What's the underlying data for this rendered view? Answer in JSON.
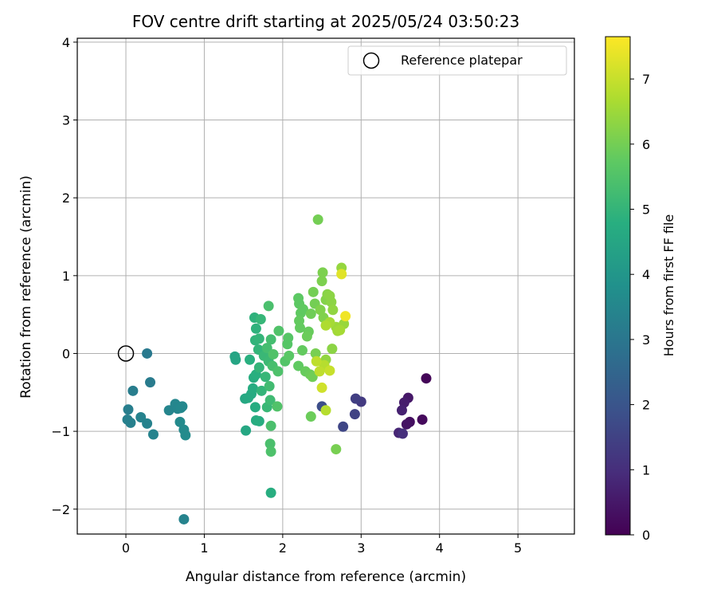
{
  "chart_data": {
    "type": "scatter",
    "title": "FOV centre drift starting at 2025/05/24 03:50:23",
    "xlabel": "Angular distance from reference (arcmin)",
    "ylabel": "Rotation from reference (arcmin)",
    "xlim": [
      -0.62,
      5.72
    ],
    "ylim": [
      -2.32,
      4.05
    ],
    "xticks": [
      0,
      1,
      2,
      3,
      4,
      5
    ],
    "yticks": [
      -2,
      -1,
      0,
      1,
      2,
      3,
      4
    ],
    "grid": true,
    "legend": {
      "position": "top-right",
      "entries": [
        "Reference platepar"
      ]
    },
    "reference_point": {
      "x": 0,
      "y": 0
    },
    "colorbar": {
      "label": "Hours from first FF file",
      "range": [
        0,
        7.65
      ],
      "ticks": [
        0,
        1,
        2,
        3,
        4,
        5,
        6,
        7
      ],
      "colormap": "viridis"
    },
    "points": [
      {
        "x": 3.83,
        "y": -0.32,
        "c": 0.1
      },
      {
        "x": 3.78,
        "y": -0.85,
        "c": 0.2
      },
      {
        "x": 3.62,
        "y": -0.88,
        "c": 0.3
      },
      {
        "x": 3.58,
        "y": -0.91,
        "c": 0.4
      },
      {
        "x": 3.6,
        "y": -0.57,
        "c": 0.5
      },
      {
        "x": 3.55,
        "y": -0.63,
        "c": 0.6
      },
      {
        "x": 3.52,
        "y": -0.73,
        "c": 0.7
      },
      {
        "x": 3.48,
        "y": -1.02,
        "c": 0.8
      },
      {
        "x": 3.53,
        "y": -1.03,
        "c": 1.0
      },
      {
        "x": 3.0,
        "y": -0.62,
        "c": 1.3
      },
      {
        "x": 2.93,
        "y": -0.58,
        "c": 1.4
      },
      {
        "x": 2.92,
        "y": -0.78,
        "c": 1.5
      },
      {
        "x": 2.77,
        "y": -0.94,
        "c": 1.6
      },
      {
        "x": 2.5,
        "y": -0.68,
        "c": 1.8
      },
      {
        "x": 0.27,
        "y": 0.0,
        "c": 3.1
      },
      {
        "x": 0.31,
        "y": -0.37,
        "c": 3.15
      },
      {
        "x": 0.09,
        "y": -0.48,
        "c": 3.2
      },
      {
        "x": 0.03,
        "y": -0.72,
        "c": 3.25
      },
      {
        "x": 0.02,
        "y": -0.85,
        "c": 3.3
      },
      {
        "x": 0.06,
        "y": -0.89,
        "c": 3.3
      },
      {
        "x": 0.19,
        "y": -0.82,
        "c": 3.35
      },
      {
        "x": 0.27,
        "y": -0.9,
        "c": 3.35
      },
      {
        "x": 0.35,
        "y": -1.04,
        "c": 3.4
      },
      {
        "x": 0.55,
        "y": -0.73,
        "c": 3.45
      },
      {
        "x": 0.63,
        "y": -0.65,
        "c": 3.5
      },
      {
        "x": 0.66,
        "y": -0.71,
        "c": 3.5
      },
      {
        "x": 0.7,
        "y": -0.7,
        "c": 3.55
      },
      {
        "x": 0.72,
        "y": -0.68,
        "c": 3.55
      },
      {
        "x": 0.69,
        "y": -0.88,
        "c": 3.6
      },
      {
        "x": 0.74,
        "y": -0.98,
        "c": 3.6
      },
      {
        "x": 0.76,
        "y": -1.05,
        "c": 3.65
      },
      {
        "x": 0.74,
        "y": -2.13,
        "c": 3.4
      },
      {
        "x": 1.39,
        "y": -0.04,
        "c": 4.45
      },
      {
        "x": 1.4,
        "y": -0.08,
        "c": 4.5
      },
      {
        "x": 1.52,
        "y": -0.58,
        "c": 4.55
      },
      {
        "x": 1.56,
        "y": -0.57,
        "c": 4.6
      },
      {
        "x": 1.53,
        "y": -0.99,
        "c": 4.55
      },
      {
        "x": 1.6,
        "y": -0.52,
        "c": 4.65
      },
      {
        "x": 1.62,
        "y": -0.45,
        "c": 4.7
      },
      {
        "x": 1.58,
        "y": -0.08,
        "c": 4.8
      },
      {
        "x": 1.63,
        "y": -0.31,
        "c": 4.75
      },
      {
        "x": 1.66,
        "y": -0.27,
        "c": 4.8
      },
      {
        "x": 1.65,
        "y": -0.69,
        "c": 4.7
      },
      {
        "x": 1.66,
        "y": -0.86,
        "c": 4.7
      },
      {
        "x": 1.7,
        "y": -0.87,
        "c": 4.75
      },
      {
        "x": 1.85,
        "y": -1.79,
        "c": 4.75
      },
      {
        "x": 1.64,
        "y": 0.46,
        "c": 4.9
      },
      {
        "x": 1.66,
        "y": 0.32,
        "c": 4.9
      },
      {
        "x": 1.65,
        "y": 0.17,
        "c": 4.95
      },
      {
        "x": 1.7,
        "y": 0.19,
        "c": 5.0
      },
      {
        "x": 1.69,
        "y": 0.05,
        "c": 5.0
      },
      {
        "x": 1.7,
        "y": -0.18,
        "c": 5.0
      },
      {
        "x": 1.73,
        "y": -0.48,
        "c": 5.0
      },
      {
        "x": 1.72,
        "y": 0.44,
        "c": 5.05
      },
      {
        "x": 1.78,
        "y": -0.3,
        "c": 5.05
      },
      {
        "x": 1.8,
        "y": -0.69,
        "c": 5.1
      },
      {
        "x": 1.76,
        "y": -0.03,
        "c": 5.1
      },
      {
        "x": 1.82,
        "y": -0.1,
        "c": 5.15
      },
      {
        "x": 1.84,
        "y": -0.6,
        "c": 5.2
      },
      {
        "x": 1.83,
        "y": -0.42,
        "c": 5.25
      },
      {
        "x": 1.8,
        "y": 0.07,
        "c": 5.3
      },
      {
        "x": 1.85,
        "y": 0.18,
        "c": 5.3
      },
      {
        "x": 1.87,
        "y": -0.16,
        "c": 5.35
      },
      {
        "x": 1.85,
        "y": -0.93,
        "c": 5.4
      },
      {
        "x": 1.84,
        "y": -1.16,
        "c": 5.4
      },
      {
        "x": 1.85,
        "y": -1.26,
        "c": 5.45
      },
      {
        "x": 1.82,
        "y": 0.61,
        "c": 5.4
      },
      {
        "x": 1.95,
        "y": 0.29,
        "c": 5.5
      },
      {
        "x": 1.94,
        "y": -0.23,
        "c": 5.45
      },
      {
        "x": 1.93,
        "y": -0.68,
        "c": 5.5
      },
      {
        "x": 1.88,
        "y": -0.01,
        "c": 5.5
      },
      {
        "x": 2.03,
        "y": -0.1,
        "c": 5.55
      },
      {
        "x": 2.06,
        "y": 0.12,
        "c": 5.6
      },
      {
        "x": 2.07,
        "y": 0.2,
        "c": 5.6
      },
      {
        "x": 2.08,
        "y": -0.03,
        "c": 5.65
      },
      {
        "x": 2.2,
        "y": 0.71,
        "c": 5.7
      },
      {
        "x": 2.21,
        "y": 0.64,
        "c": 5.7
      },
      {
        "x": 2.23,
        "y": 0.52,
        "c": 5.75
      },
      {
        "x": 2.26,
        "y": 0.57,
        "c": 5.75
      },
      {
        "x": 2.21,
        "y": 0.42,
        "c": 5.8
      },
      {
        "x": 2.22,
        "y": 0.33,
        "c": 5.8
      },
      {
        "x": 2.2,
        "y": -0.16,
        "c": 5.75
      },
      {
        "x": 2.25,
        "y": 0.04,
        "c": 5.8
      },
      {
        "x": 2.29,
        "y": -0.23,
        "c": 5.85
      },
      {
        "x": 2.33,
        "y": 0.28,
        "c": 5.85
      },
      {
        "x": 2.31,
        "y": 0.22,
        "c": 5.9
      },
      {
        "x": 2.35,
        "y": -0.27,
        "c": 5.9
      },
      {
        "x": 2.38,
        "y": -0.3,
        "c": 5.95
      },
      {
        "x": 2.36,
        "y": -0.81,
        "c": 5.9
      },
      {
        "x": 2.36,
        "y": 0.51,
        "c": 5.95
      },
      {
        "x": 2.39,
        "y": 0.79,
        "c": 6.0
      },
      {
        "x": 2.41,
        "y": 0.64,
        "c": 6.0
      },
      {
        "x": 2.45,
        "y": 1.72,
        "c": 6.0
      },
      {
        "x": 2.42,
        "y": 0.0,
        "c": 6.05
      },
      {
        "x": 2.68,
        "y": -1.23,
        "c": 6.05
      },
      {
        "x": 2.5,
        "y": 0.93,
        "c": 6.1
      },
      {
        "x": 2.51,
        "y": 1.04,
        "c": 6.1
      },
      {
        "x": 2.48,
        "y": 0.56,
        "c": 6.15
      },
      {
        "x": 2.52,
        "y": 0.46,
        "c": 6.15
      },
      {
        "x": 2.55,
        "y": 0.69,
        "c": 6.2
      },
      {
        "x": 2.57,
        "y": 0.76,
        "c": 6.25
      },
      {
        "x": 2.6,
        "y": 0.74,
        "c": 6.3
      },
      {
        "x": 2.62,
        "y": 0.66,
        "c": 6.3
      },
      {
        "x": 2.64,
        "y": 0.56,
        "c": 6.35
      },
      {
        "x": 2.63,
        "y": 0.06,
        "c": 6.3
      },
      {
        "x": 2.55,
        "y": -0.08,
        "c": 6.35
      },
      {
        "x": 2.75,
        "y": 1.1,
        "c": 6.4
      },
      {
        "x": 2.78,
        "y": 0.38,
        "c": 6.45
      },
      {
        "x": 2.68,
        "y": 0.34,
        "c": 6.5
      },
      {
        "x": 2.7,
        "y": 0.29,
        "c": 6.55
      },
      {
        "x": 2.73,
        "y": 0.3,
        "c": 6.6
      },
      {
        "x": 2.6,
        "y": 0.4,
        "c": 6.6
      },
      {
        "x": 2.55,
        "y": 0.36,
        "c": 6.7
      },
      {
        "x": 2.53,
        "y": -0.15,
        "c": 6.8
      },
      {
        "x": 2.55,
        "y": -0.73,
        "c": 6.8
      },
      {
        "x": 2.47,
        "y": -0.23,
        "c": 6.9
      },
      {
        "x": 2.43,
        "y": -0.1,
        "c": 6.9
      },
      {
        "x": 2.6,
        "y": -0.22,
        "c": 7.0
      },
      {
        "x": 2.5,
        "y": -0.44,
        "c": 7.1
      },
      {
        "x": 2.75,
        "y": 1.02,
        "c": 7.3
      },
      {
        "x": 2.8,
        "y": 0.48,
        "c": 7.5
      }
    ]
  }
}
